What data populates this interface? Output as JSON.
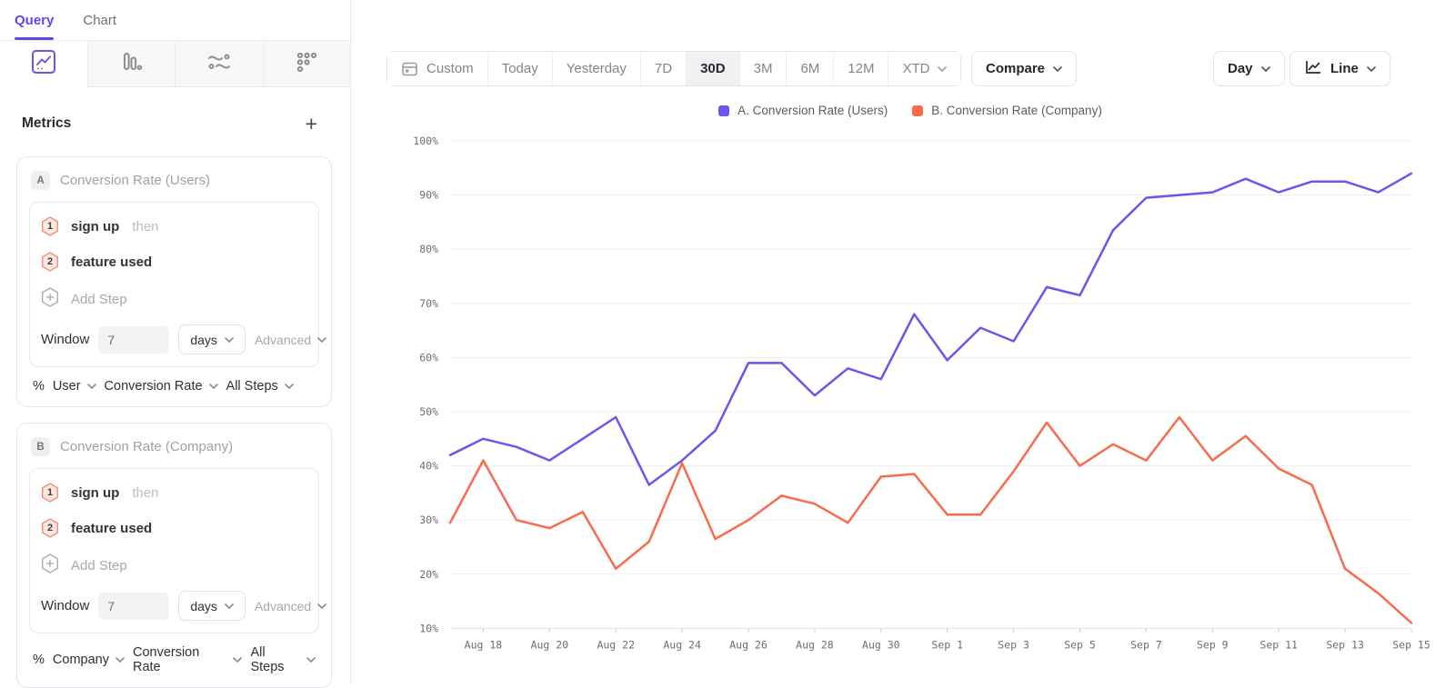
{
  "theme": {
    "accent": "#5F48E8",
    "series_a": "#6C55EA",
    "series_b": "#F96B4C"
  },
  "sidebar": {
    "tabs": [
      {
        "label": "Query"
      },
      {
        "label": "Chart"
      }
    ],
    "active_tab": "Query",
    "chart_type_tabs": [
      "insights-line",
      "bar-chart",
      "flows",
      "retention-dots"
    ],
    "metrics": {
      "title": "Metrics",
      "add_button": "+",
      "cards": [
        {
          "id": "A",
          "title": "Conversion Rate (Users)",
          "steps": [
            {
              "num": "1",
              "event": "sign up",
              "connector": "then"
            },
            {
              "num": "2",
              "event": "feature used",
              "connector": ""
            }
          ],
          "add_step": "Add Step",
          "window_label": "Window",
          "window_value": "7",
          "window_unit": "days",
          "advanced": "Advanced",
          "measure_prefix": "%",
          "measure_entity": "User",
          "measure_metric": "Conversion Rate",
          "measure_scope": "All Steps"
        },
        {
          "id": "B",
          "title": "Conversion Rate (Company)",
          "steps": [
            {
              "num": "1",
              "event": "sign up",
              "connector": "then"
            },
            {
              "num": "2",
              "event": "feature used",
              "connector": ""
            }
          ],
          "add_step": "Add Step",
          "window_label": "Window",
          "window_value": "7",
          "window_unit": "days",
          "advanced": "Advanced",
          "measure_prefix": "%",
          "measure_entity": "Company",
          "measure_metric": "Conversion Rate",
          "measure_scope": "All Steps"
        }
      ]
    }
  },
  "toolbar": {
    "date_ranges": [
      {
        "label": "Custom",
        "icon": "calendar"
      },
      {
        "label": "Today"
      },
      {
        "label": "Yesterday"
      },
      {
        "label": "7D"
      },
      {
        "label": "30D",
        "selected": true
      },
      {
        "label": "3M"
      },
      {
        "label": "6M"
      },
      {
        "label": "12M"
      },
      {
        "label": "XTD",
        "dropdown": true
      }
    ],
    "compare_label": "Compare",
    "granularity_label": "Day",
    "chart_style_label": "Line"
  },
  "legend": {
    "items": [
      {
        "label": "A. Conversion Rate (Users)",
        "color": "#6C55EA"
      },
      {
        "label": "B. Conversion Rate (Company)",
        "color": "#F96B4C"
      }
    ]
  },
  "chart_data": {
    "type": "line",
    "x": [
      "Aug 17",
      "Aug 18",
      "Aug 19",
      "Aug 20",
      "Aug 21",
      "Aug 22",
      "Aug 23",
      "Aug 24",
      "Aug 25",
      "Aug 26",
      "Aug 27",
      "Aug 28",
      "Aug 29",
      "Aug 30",
      "Aug 31",
      "Sep 1",
      "Sep 2",
      "Sep 3",
      "Sep 4",
      "Sep 5",
      "Sep 6",
      "Sep 7",
      "Sep 8",
      "Sep 9",
      "Sep 10",
      "Sep 11",
      "Sep 12",
      "Sep 13",
      "Sep 14",
      "Sep 15"
    ],
    "x_tick_labels": [
      "Aug 18",
      "Aug 20",
      "Aug 22",
      "Aug 24",
      "Aug 26",
      "Aug 28",
      "Aug 30",
      "Sep 1",
      "Sep 3",
      "Sep 5",
      "Sep 7",
      "Sep 9",
      "Sep 11",
      "Sep 13",
      "Sep 15"
    ],
    "ylim": [
      10,
      100
    ],
    "y_ticks": [
      100,
      90,
      80,
      70,
      60,
      50,
      40,
      30,
      20,
      10
    ],
    "y_unit": "%",
    "grid": true,
    "legend_position": "top-center",
    "series": [
      {
        "name": "A. Conversion Rate (Users)",
        "color": "#6C55EA",
        "values": [
          42,
          45,
          43.5,
          41,
          45,
          49,
          36.5,
          41,
          46.5,
          59,
          59,
          53,
          58,
          56,
          68,
          59.5,
          65.5,
          63,
          73,
          71.5,
          83.5,
          89.5,
          90,
          90.5,
          93,
          90.5,
          92.5,
          92.5,
          90.5,
          94
        ]
      },
      {
        "name": "B. Conversion Rate (Company)",
        "color": "#F96B4C",
        "values": [
          29.5,
          41,
          30,
          28.5,
          31.5,
          21,
          26,
          40.5,
          26.5,
          30,
          34.5,
          33,
          29.5,
          38,
          38.5,
          31,
          31,
          39,
          48,
          40,
          44,
          41,
          49,
          41,
          45.5,
          39.5,
          36.5,
          21,
          16.5,
          11
        ]
      }
    ]
  }
}
